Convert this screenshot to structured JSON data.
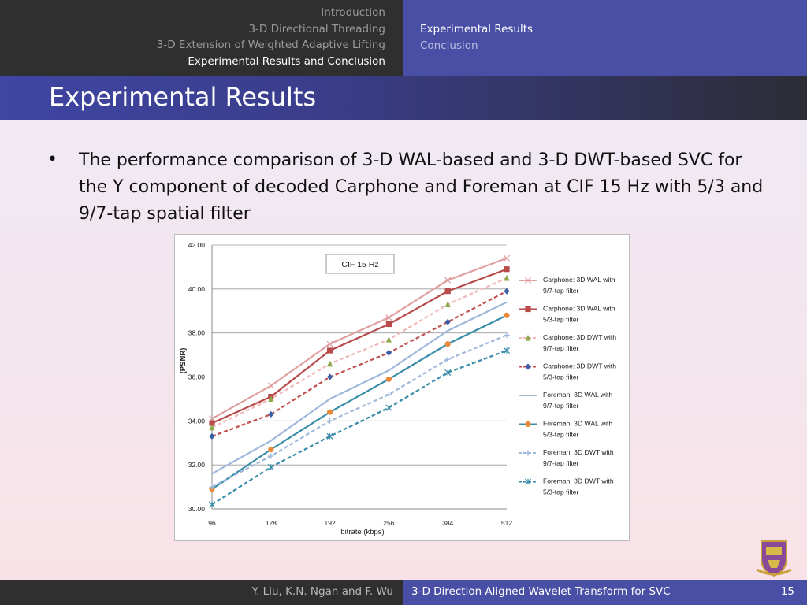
{
  "nav": {
    "sections": [
      "Introduction",
      "3-D Directional Threading",
      "3-D Extension of Weighted Adaptive Lifting",
      "Experimental Results and Conclusion"
    ],
    "active_section_index": 3,
    "subsections": [
      "Experimental Results",
      "Conclusion"
    ],
    "active_subsection_index": 0
  },
  "slide": {
    "title": "Experimental Results",
    "bullet": "The performance comparison of 3-D WAL-based and 3-D DWT-based SVC for the Y component of decoded Carphone and Foreman at CIF 15 Hz with 5/3 and 9/7-tap spatial filter"
  },
  "footer": {
    "authors": "Y. Liu, K.N. Ngan and F. Wu",
    "talk_title": "3-D Direction Aligned Wavelet Transform for SVC",
    "page_number": "15"
  },
  "colors": {
    "nav_dark": "#2f2f2f",
    "nav_accent": "#4a4fa6"
  },
  "chart_data": {
    "type": "line",
    "title": "CIF 15 Hz",
    "xlabel": "bitrate (kbps)",
    "ylabel": "(PSNR)",
    "categories": [
      "96",
      "128",
      "192",
      "256",
      "384",
      "512"
    ],
    "ylim": [
      30.0,
      42.0
    ],
    "yticks": [
      "30.00",
      "32.00",
      "34.00",
      "36.00",
      "38.00",
      "40.00",
      "42.00"
    ],
    "grid": true,
    "legend_position": "right",
    "series": [
      {
        "name": "Carphone: 3D WAL with 9/7-tap filter",
        "values": [
          34.1,
          35.6,
          37.5,
          38.7,
          40.4,
          41.4
        ],
        "color": "#e0a0a0",
        "marker": "x",
        "dash": false
      },
      {
        "name": "Carphone: 3D WAL with 5/3-tap filter",
        "values": [
          33.9,
          35.1,
          37.2,
          38.4,
          39.9,
          40.9
        ],
        "color": "#b84a4a",
        "marker": "square",
        "dash": false
      },
      {
        "name": "Carphone: 3D DWT with 9/7-tap filter",
        "values": [
          33.7,
          35.0,
          36.6,
          37.7,
          39.3,
          40.5
        ],
        "color": "#8faa4a",
        "linecolor": "#f0b8b8",
        "marker": "triangle",
        "dash": true
      },
      {
        "name": "Carphone: 3D DWT with 5/3-tap filter",
        "values": [
          33.3,
          34.3,
          36.0,
          37.1,
          38.5,
          39.9
        ],
        "color": "#c05050",
        "markercolor": "#3a5fa8",
        "marker": "diamond",
        "dash": true
      },
      {
        "name": "Foreman: 3D WAL with 9/7-tap filter",
        "values": [
          31.6,
          33.1,
          35.0,
          36.3,
          38.1,
          39.4
        ],
        "color": "#9fb8dc",
        "marker": "none",
        "dash": false
      },
      {
        "name": "Foreman: 3D WAL with 5/3-tap filter",
        "values": [
          30.9,
          32.7,
          34.4,
          35.9,
          37.5,
          38.8
        ],
        "color": "#3a8ca8",
        "markercolor": "#e88a3a",
        "marker": "circle",
        "dash": false
      },
      {
        "name": "Foreman: 3D DWT with 9/7-tap filter",
        "values": [
          31.0,
          32.4,
          34.0,
          35.2,
          36.8,
          37.9
        ],
        "color": "#9fb8dc",
        "marker": "plus",
        "dash": true
      },
      {
        "name": "Foreman: 3D DWT with 5/3-tap filter",
        "values": [
          30.2,
          31.9,
          33.3,
          34.6,
          36.2,
          37.2
        ],
        "color": "#3a8ca8",
        "marker": "star",
        "dash": true
      }
    ]
  }
}
